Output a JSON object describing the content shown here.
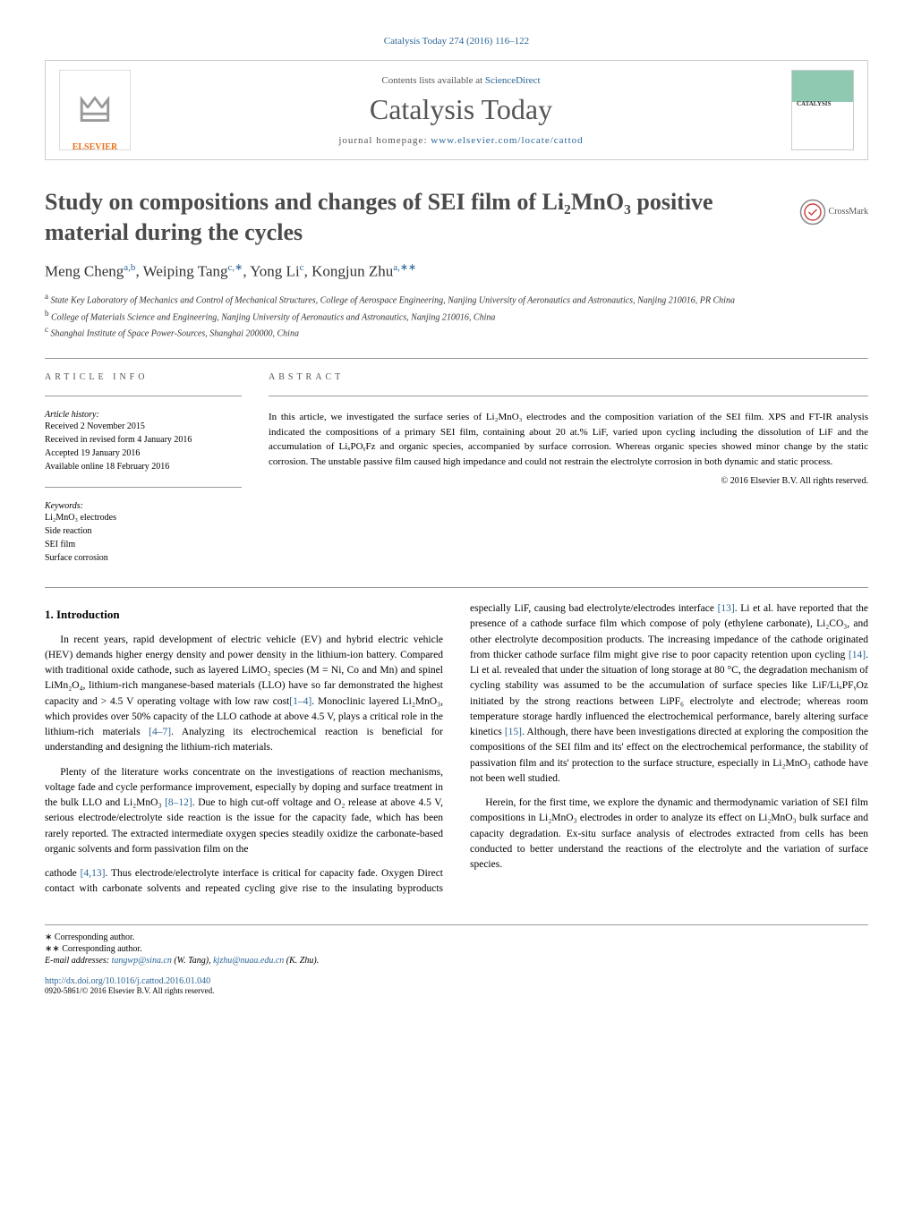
{
  "journal_ref": {
    "text": "Catalysis Today 274 (2016) 116–122",
    "link_text": "Catalysis Today"
  },
  "header": {
    "elsevier": "ELSEVIER",
    "contents": {
      "prefix": "Contents lists available at ",
      "link": "ScienceDirect"
    },
    "journal": "Catalysis Today",
    "homepage": {
      "prefix": "journal homepage: ",
      "url": "www.elsevier.com/locate/cattod"
    }
  },
  "title": "Study on compositions and changes of SEI film of Li₂MnO₃ positive material during the cycles",
  "crossmark": "CrossMark",
  "authors_html": "Meng Cheng<sup>a,b</sup>, Weiping Tang<sup>c,∗</sup>, Yong Li<sup>c</sup>, Kongjun Zhu<sup>a,∗∗</sup>",
  "affiliations": [
    {
      "sup": "a",
      "text": "State Key Laboratory of Mechanics and Control of Mechanical Structures, College of Aerospace Engineering, Nanjing University of Aeronautics and Astronautics, Nanjing 210016, PR China"
    },
    {
      "sup": "b",
      "text": "College of Materials Science and Engineering, Nanjing University of Aeronautics and Astronautics, Nanjing 210016, China"
    },
    {
      "sup": "c",
      "text": "Shanghai Institute of Space Power-Sources, Shanghai 200000, China"
    }
  ],
  "article_info": {
    "heading": "article info",
    "history_label": "Article history:",
    "history": [
      "Received 2 November 2015",
      "Received in revised form 4 January 2016",
      "Accepted 19 January 2016",
      "Available online 18 February 2016"
    ],
    "keywords_label": "Keywords:",
    "keywords": [
      "Li₂MnO₃ electrodes",
      "Side reaction",
      "SEI film",
      "Surface corrosion"
    ]
  },
  "abstract": {
    "heading": "abstract",
    "text": "In this article, we investigated the surface series of Li₂MnO₃ electrodes and the composition variation of the SEI film. XPS and FT-IR analysis indicated the compositions of a primary SEI film, containing about 20 at.% LiF, varied upon cycling including the dissolution of LiF and the accumulation of LiₓPOᵧFz and organic species, accompanied by surface corrosion. Whereas organic species showed minor change by the static corrosion. The unstable passive film caused high impedance and could not restrain the electrolyte corrosion in both dynamic and static process.",
    "copyright": "© 2016 Elsevier B.V. All rights reserved."
  },
  "body": {
    "section1_title": "1. Introduction",
    "p1": "In recent years, rapid development of electric vehicle (EV) and hybrid electric vehicle (HEV) demands higher energy density and power density in the lithium-ion battery. Compared with traditional oxide cathode, such as layered LiMO₂ species (M = Ni, Co and Mn) and spinel LiMn₂O₄, lithium-rich manganese-based materials (LLO) have so far demonstrated the highest capacity and > 4.5 V operating voltage with low raw cost",
    "p1_ref": "[1–4]",
    "p1b": ". Monoclinic layered Li₂MnO₃, which provides over 50% capacity of the LLO cathode at above 4.5 V, plays a critical role in the lithium-rich materials ",
    "p1_ref2": "[4–7]",
    "p1c": ". Analyzing its electrochemical reaction is beneficial for understanding and designing the lithium-rich materials.",
    "p2": "Plenty of the literature works concentrate on the investigations of reaction mechanisms, voltage fade and cycle performance improvement, especially by doping and surface treatment in the bulk LLO and Li₂MnO₃ ",
    "p2_ref": "[8–12]",
    "p2b": ". Due to high cut-off voltage and O₂ release at above 4.5 V, serious electrode/electrolyte side reaction is the issue for the capacity fade, which has been rarely reported. The extracted intermediate oxygen species steadily oxidize the carbonate-based organic solvents and form passivation film on the",
    "p3a": "cathode ",
    "p3_ref1": "[4,13]",
    "p3b": ". Thus electrode/electrolyte interface is critical for capacity fade. Oxygen Direct contact with carbonate solvents and repeated cycling give rise to the insulating byproducts especially LiF, causing bad electrolyte/electrodes interface ",
    "p3_ref2": "[13]",
    "p3c": ". Li et al. have reported that the presence of a cathode surface film which compose of poly (ethylene carbonate), Li₂CO₃, and other electrolyte decomposition products. The increasing impedance of the cathode originated from thicker cathode surface film might give rise to poor capacity retention upon cycling ",
    "p3_ref3": "[14]",
    "p3d": ". Li et al. revealed that under the situation of long storage at 80 °C, the degradation mechanism of cycling stability was assumed to be the accumulation of surface species like LiF/LiₓPFᵧOz initiated by the strong reactions between LiPF₆ electrolyte and electrode; whereas room temperature storage hardly influenced the electrochemical performance, barely altering surface kinetics ",
    "p3_ref4": "[15]",
    "p3e": ". Although, there have been investigations directed at exploring the composition the compositions of the SEI film and its' effect on the electrochemical performance, the stability of passivation film and its' protection to the surface structure, especially in Li₂MnO₃ cathode have not been well studied.",
    "p4": "Herein, for the first time, we explore the dynamic and thermodynamic variation of SEI film compositions in Li₂MnO₃ electrodes in order to analyze its effect on Li₂MnO₃ bulk surface and capacity degradation. Ex-situ surface analysis of electrodes extracted from cells has been conducted to better understand the reactions of the electrolyte and the variation of surface species."
  },
  "footer": {
    "corr1": "∗ Corresponding author.",
    "corr2": "∗∗ Corresponding author.",
    "email_label": "E-mail addresses: ",
    "email1": "tangwp@sina.cn",
    "email1_name": " (W. Tang), ",
    "email2": "kjzhu@nuaa.edu.cn",
    "email2_name": " (K. Zhu).",
    "doi": "http://dx.doi.org/10.1016/j.cattod.2016.01.040",
    "issn": "0920-5861/© 2016 Elsevier B.V. All rights reserved."
  },
  "colors": {
    "link": "#2a6496",
    "elsevier_orange": "#e9711c",
    "heading_gray": "#555555"
  }
}
